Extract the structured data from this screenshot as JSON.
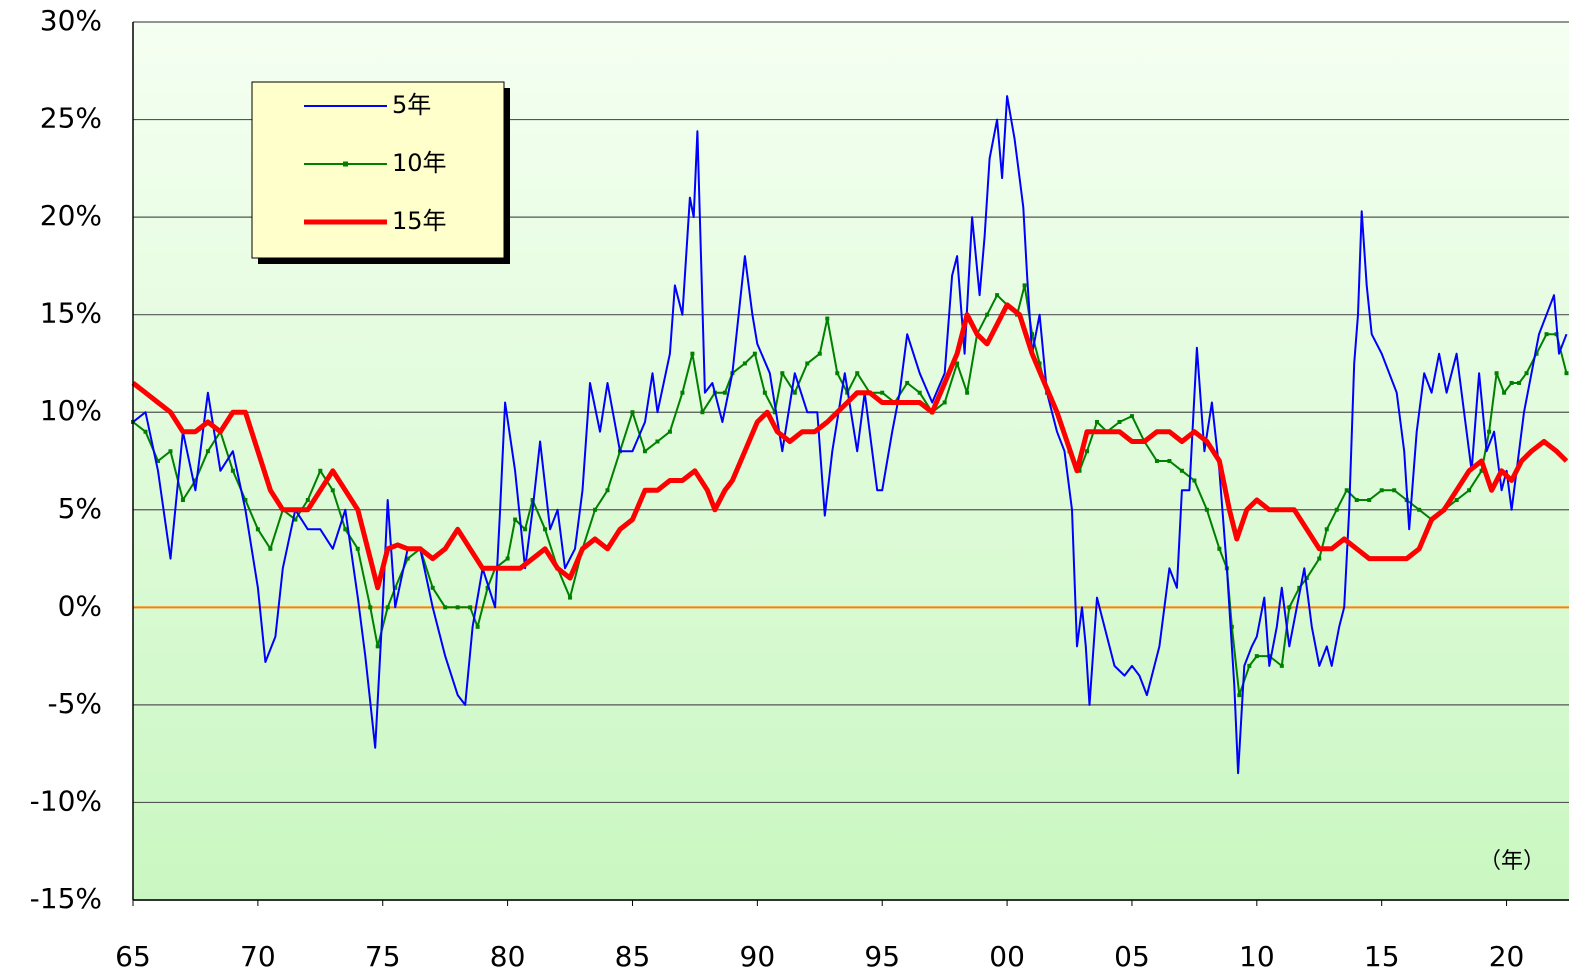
{
  "chart_data": {
    "type": "line",
    "annotations": [
      "（年）"
    ],
    "xlim": [
      1965,
      2022.5
    ],
    "xticks": [
      {
        "value": 1965,
        "label": "65"
      },
      {
        "value": 1970,
        "label": "70"
      },
      {
        "value": 1975,
        "label": "75"
      },
      {
        "value": 1980,
        "label": "80"
      },
      {
        "value": 1985,
        "label": "85"
      },
      {
        "value": 1990,
        "label": "90"
      },
      {
        "value": 1995,
        "label": "95"
      },
      {
        "value": 2000,
        "label": "00"
      },
      {
        "value": 2005,
        "label": "05"
      },
      {
        "value": 2010,
        "label": "10"
      },
      {
        "value": 2015,
        "label": "15"
      },
      {
        "value": 2020,
        "label": "20"
      }
    ],
    "ylim": [
      -15,
      30
    ],
    "yticks": [
      {
        "value": -15,
        "label": "-15%"
      },
      {
        "value": -10,
        "label": "-10%"
      },
      {
        "value": -5,
        "label": "-5%"
      },
      {
        "value": 0,
        "label": "0%"
      },
      {
        "value": 5,
        "label": "5%"
      },
      {
        "value": 10,
        "label": "10%"
      },
      {
        "value": 15,
        "label": "15%"
      },
      {
        "value": 20,
        "label": "20%"
      },
      {
        "value": 25,
        "label": "25%"
      },
      {
        "value": 30,
        "label": "30%"
      }
    ],
    "grid": true,
    "zero_line_color": "#ff8000",
    "legend": "upper left",
    "series": [
      {
        "name": "5年",
        "color": "#0000ff",
        "line_width": 2,
        "x": [
          1965,
          1965.5,
          1966,
          1966.5,
          1967,
          1967.5,
          1968,
          1968.5,
          1969,
          1969.5,
          1970,
          1970.3,
          1970.7,
          1971,
          1971.5,
          1972,
          1972.5,
          1973,
          1973.5,
          1974,
          1974.3,
          1974.7,
          1975,
          1975.2,
          1975.5,
          1976,
          1976.5,
          1977,
          1977.5,
          1978,
          1978.3,
          1978.6,
          1979,
          1979.5,
          1979.7,
          1979.9,
          1980.3,
          1980.7,
          1981,
          1981.3,
          1981.7,
          1982,
          1982.3,
          1982.7,
          1983,
          1983.3,
          1983.7,
          1984,
          1984.5,
          1985,
          1985.5,
          1985.8,
          1986,
          1986.5,
          1986.7,
          1987,
          1987.3,
          1987.45,
          1987.6,
          1987.9,
          1988.2,
          1988.6,
          1989,
          1989.5,
          1989.8,
          1990,
          1990.5,
          1991,
          1991.5,
          1992,
          1992.4,
          1992.7,
          1993,
          1993.5,
          1994,
          1994.3,
          1994.8,
          1995,
          1995.4,
          1995.7,
          1996,
          1996.5,
          1997,
          1997.5,
          1997.8,
          1998,
          1998.3,
          1998.6,
          1998.9,
          1999.1,
          1999.3,
          1999.6,
          1999.8,
          2000,
          2000.3,
          2000.5,
          2000.65,
          2000.8,
          2001,
          2001.3,
          2001.6,
          2002,
          2002.3,
          2002.6,
          2002.8,
          2003,
          2003.15,
          2003.3,
          2003.6,
          2004,
          2004.3,
          2004.7,
          2005,
          2005.3,
          2005.6,
          2005.9,
          2006.1,
          2006.3,
          2006.5,
          2006.8,
          2007,
          2007.3,
          2007.6,
          2007.9,
          2008.2,
          2008.5,
          2008.8,
          2009.1,
          2009.25,
          2009.5,
          2009.8,
          2010,
          2010.3,
          2010.5,
          2010.8,
          2011,
          2011.3,
          2011.6,
          2011.9,
          2012.2,
          2012.5,
          2012.8,
          2013,
          2013.3,
          2013.5,
          2013.7,
          2013.9,
          2014.05,
          2014.2,
          2014.4,
          2014.6,
          2015,
          2015.3,
          2015.6,
          2015.9,
          2016.1,
          2016.4,
          2016.7,
          2017,
          2017.3,
          2017.6,
          2018,
          2018.3,
          2018.6,
          2018.9,
          2019.2,
          2019.5,
          2019.8,
          2020,
          2020.2,
          2020.4,
          2020.7,
          2021,
          2021.3,
          2021.6,
          2021.9,
          2022.1,
          2022.4
        ],
        "values": [
          9.5,
          10,
          7,
          2.5,
          9,
          6,
          11,
          7,
          8,
          5,
          1,
          -2.8,
          -1.5,
          2,
          5,
          4,
          4,
          3,
          5,
          0.5,
          -2.5,
          -7.2,
          0,
          5.5,
          0,
          3,
          3,
          0,
          -2.5,
          -4.5,
          -5,
          -1,
          2,
          0,
          5,
          10.5,
          7,
          2,
          5,
          8.5,
          4,
          5,
          2,
          3,
          6,
          11.5,
          9,
          11.5,
          8,
          8,
          9.5,
          12,
          10,
          13,
          16.5,
          15,
          21,
          20,
          24.4,
          11,
          11.5,
          9.5,
          12,
          18,
          15,
          13.5,
          12,
          8,
          12,
          10,
          10,
          4.7,
          8,
          12,
          8,
          11,
          6,
          6,
          9,
          11,
          14,
          12,
          10.5,
          12,
          17,
          18,
          13,
          20,
          16,
          19,
          23,
          25,
          22,
          26.2,
          24,
          22,
          20.5,
          17,
          13,
          15,
          11,
          9,
          8,
          5,
          -2,
          0,
          -2,
          -5,
          0.5,
          -1.5,
          -3,
          -3.5,
          -3,
          -3.5,
          -4.5,
          -3,
          -2,
          0,
          2,
          1,
          6,
          6,
          13.3,
          8,
          10.5,
          7,
          2,
          -4,
          -8.5,
          -3,
          -2,
          -1.5,
          0.5,
          -3,
          -1,
          1,
          -2,
          0,
          2,
          -1,
          -3,
          -2,
          -3,
          -1,
          0,
          5,
          12.5,
          15,
          20.3,
          16.5,
          14,
          13,
          12,
          11,
          8,
          4,
          9,
          12,
          11,
          13,
          11,
          13,
          10,
          7,
          12,
          8,
          9,
          6,
          7,
          5,
          7,
          10,
          12,
          14,
          15,
          16,
          13,
          14
        ]
      },
      {
        "name": "10年",
        "color": "#008000",
        "line_width": 2,
        "marker": "square",
        "x": [
          1965,
          1965.5,
          1966,
          1966.5,
          1967,
          1967.5,
          1968,
          1968.5,
          1969,
          1969.5,
          1970,
          1970.5,
          1971,
          1971.5,
          1972,
          1972.5,
          1973,
          1973.5,
          1974,
          1974.5,
          1974.8,
          1975.2,
          1975.5,
          1976,
          1976.5,
          1977,
          1977.5,
          1978,
          1978.5,
          1978.8,
          1979.2,
          1979.5,
          1980,
          1980.3,
          1980.7,
          1981,
          1981.5,
          1982,
          1982.5,
          1983,
          1983.5,
          1984,
          1984.5,
          1985,
          1985.5,
          1986,
          1986.5,
          1987,
          1987.4,
          1987.8,
          1988.3,
          1988.7,
          1989,
          1989.5,
          1989.9,
          1990.3,
          1990.7,
          1991,
          1991.5,
          1992,
          1992.5,
          1992.8,
          1993.2,
          1993.6,
          1994,
          1994.5,
          1995,
          1995.5,
          1996,
          1996.5,
          1997,
          1997.5,
          1998,
          1998.4,
          1998.8,
          1999.2,
          1999.6,
          2000,
          2000.4,
          2000.7,
          2001,
          2001.3,
          2001.6,
          2002,
          2002.5,
          2002.9,
          2003.2,
          2003.6,
          2004,
          2004.5,
          2005,
          2005.5,
          2006,
          2006.5,
          2007,
          2007.5,
          2008,
          2008.5,
          2008.8,
          2009,
          2009.3,
          2009.7,
          2010,
          2010.5,
          2011,
          2011.3,
          2011.7,
          2012,
          2012.5,
          2012.8,
          2013.2,
          2013.6,
          2014,
          2014.5,
          2015,
          2015.5,
          2016,
          2016.5,
          2017,
          2017.5,
          2018,
          2018.5,
          2019,
          2019.3,
          2019.6,
          2019.9,
          2020.2,
          2020.5,
          2020.8,
          2021.2,
          2021.6,
          2022,
          2022.4
        ],
        "values": [
          9.5,
          9,
          7.5,
          8,
          5.5,
          6.5,
          8,
          9,
          7,
          5.5,
          4,
          3,
          5,
          4.5,
          5.5,
          7,
          6,
          4,
          3,
          0,
          -2,
          0,
          1,
          2.5,
          3,
          1,
          0,
          0,
          0,
          -1,
          1,
          2,
          2.5,
          4.5,
          4,
          5.5,
          4,
          2,
          0.5,
          3,
          5,
          6,
          8,
          10,
          8,
          8.5,
          9,
          11,
          13,
          10,
          11,
          11,
          12,
          12.5,
          13,
          11,
          10,
          12,
          11,
          12.5,
          13,
          14.8,
          12,
          11,
          12,
          11,
          11,
          10.5,
          11.5,
          11,
          10,
          10.5,
          12.5,
          11,
          14,
          15,
          16,
          15.5,
          15,
          16.5,
          14,
          12.5,
          11,
          10,
          8,
          7,
          8,
          9.5,
          9,
          9.5,
          9.8,
          8.5,
          7.5,
          7.5,
          7,
          6.5,
          5,
          3,
          2,
          -1,
          -4.5,
          -3,
          -2.5,
          -2.5,
          -3,
          0,
          1,
          1.5,
          2.5,
          4,
          5,
          6,
          5.5,
          5.5,
          6,
          6,
          5.5,
          5,
          4.5,
          5,
          5.5,
          6,
          7,
          9,
          12,
          11,
          11.5,
          11.5,
          12,
          13,
          14,
          14,
          12
        ]
      },
      {
        "name": "15年",
        "color": "#ff0000",
        "line_width": 5,
        "x": [
          1965,
          1965.5,
          1966,
          1966.5,
          1967,
          1967.5,
          1968,
          1968.5,
          1969,
          1969.5,
          1970,
          1970.5,
          1971,
          1971.5,
          1972,
          1972.5,
          1973,
          1973.5,
          1974,
          1974.5,
          1974.8,
          1975.2,
          1975.6,
          1976,
          1976.5,
          1977,
          1977.5,
          1978,
          1978.5,
          1979,
          1979.5,
          1980,
          1980.5,
          1981,
          1981.5,
          1982,
          1982.5,
          1983,
          1983.5,
          1984,
          1984.5,
          1985,
          1985.5,
          1986,
          1986.5,
          1987,
          1987.5,
          1988,
          1988.3,
          1988.7,
          1989,
          1989.5,
          1990,
          1990.4,
          1990.8,
          1991.3,
          1991.8,
          1992.3,
          1992.8,
          1993.2,
          1993.6,
          1994,
          1994.5,
          1995,
          1995.5,
          1996,
          1996.5,
          1997,
          1997.5,
          1998,
          1998.4,
          1998.8,
          1999.2,
          1999.6,
          2000,
          2000.5,
          2001,
          2001.5,
          2002,
          2002.4,
          2002.8,
          2003.2,
          2003.6,
          2004,
          2004.5,
          2005,
          2005.5,
          2006,
          2006.5,
          2007,
          2007.5,
          2008,
          2008.5,
          2008.9,
          2009.2,
          2009.6,
          2010,
          2010.5,
          2011,
          2011.5,
          2012,
          2012.5,
          2013,
          2013.5,
          2014,
          2014.5,
          2015,
          2015.5,
          2016,
          2016.5,
          2017,
          2017.5,
          2018,
          2018.5,
          2019,
          2019.4,
          2019.8,
          2020.2,
          2020.6,
          2021,
          2021.5,
          2022,
          2022.4
        ],
        "values": [
          11.5,
          11,
          10.5,
          10,
          9,
          9,
          9.5,
          9,
          10,
          10,
          8,
          6,
          5,
          5,
          5,
          6,
          7,
          6,
          5,
          2.5,
          1,
          3,
          3.2,
          3,
          3,
          2.5,
          3,
          4,
          3,
          2,
          2,
          2,
          2,
          2.5,
          3,
          2,
          1.5,
          3,
          3.5,
          3,
          4,
          4.5,
          6,
          6,
          6.5,
          6.5,
          7,
          6,
          5,
          6,
          6.5,
          8,
          9.5,
          10,
          9,
          8.5,
          9,
          9,
          9.5,
          10,
          10.5,
          11,
          11,
          10.5,
          10.5,
          10.5,
          10.5,
          10,
          11.5,
          13,
          15,
          14,
          13.5,
          14.5,
          15.5,
          15,
          13,
          11.5,
          10,
          8.5,
          7,
          9,
          9,
          9,
          9,
          8.5,
          8.5,
          9,
          9,
          8.5,
          9,
          8.5,
          7.5,
          5,
          3.5,
          5,
          5.5,
          5,
          5,
          5,
          4,
          3,
          3,
          3.5,
          3,
          2.5,
          2.5,
          2.5,
          2.5,
          3,
          4.5,
          5,
          6,
          7,
          7.5,
          6,
          7,
          6.5,
          7.5,
          8,
          8.5,
          8,
          7.5
        ]
      }
    ]
  }
}
